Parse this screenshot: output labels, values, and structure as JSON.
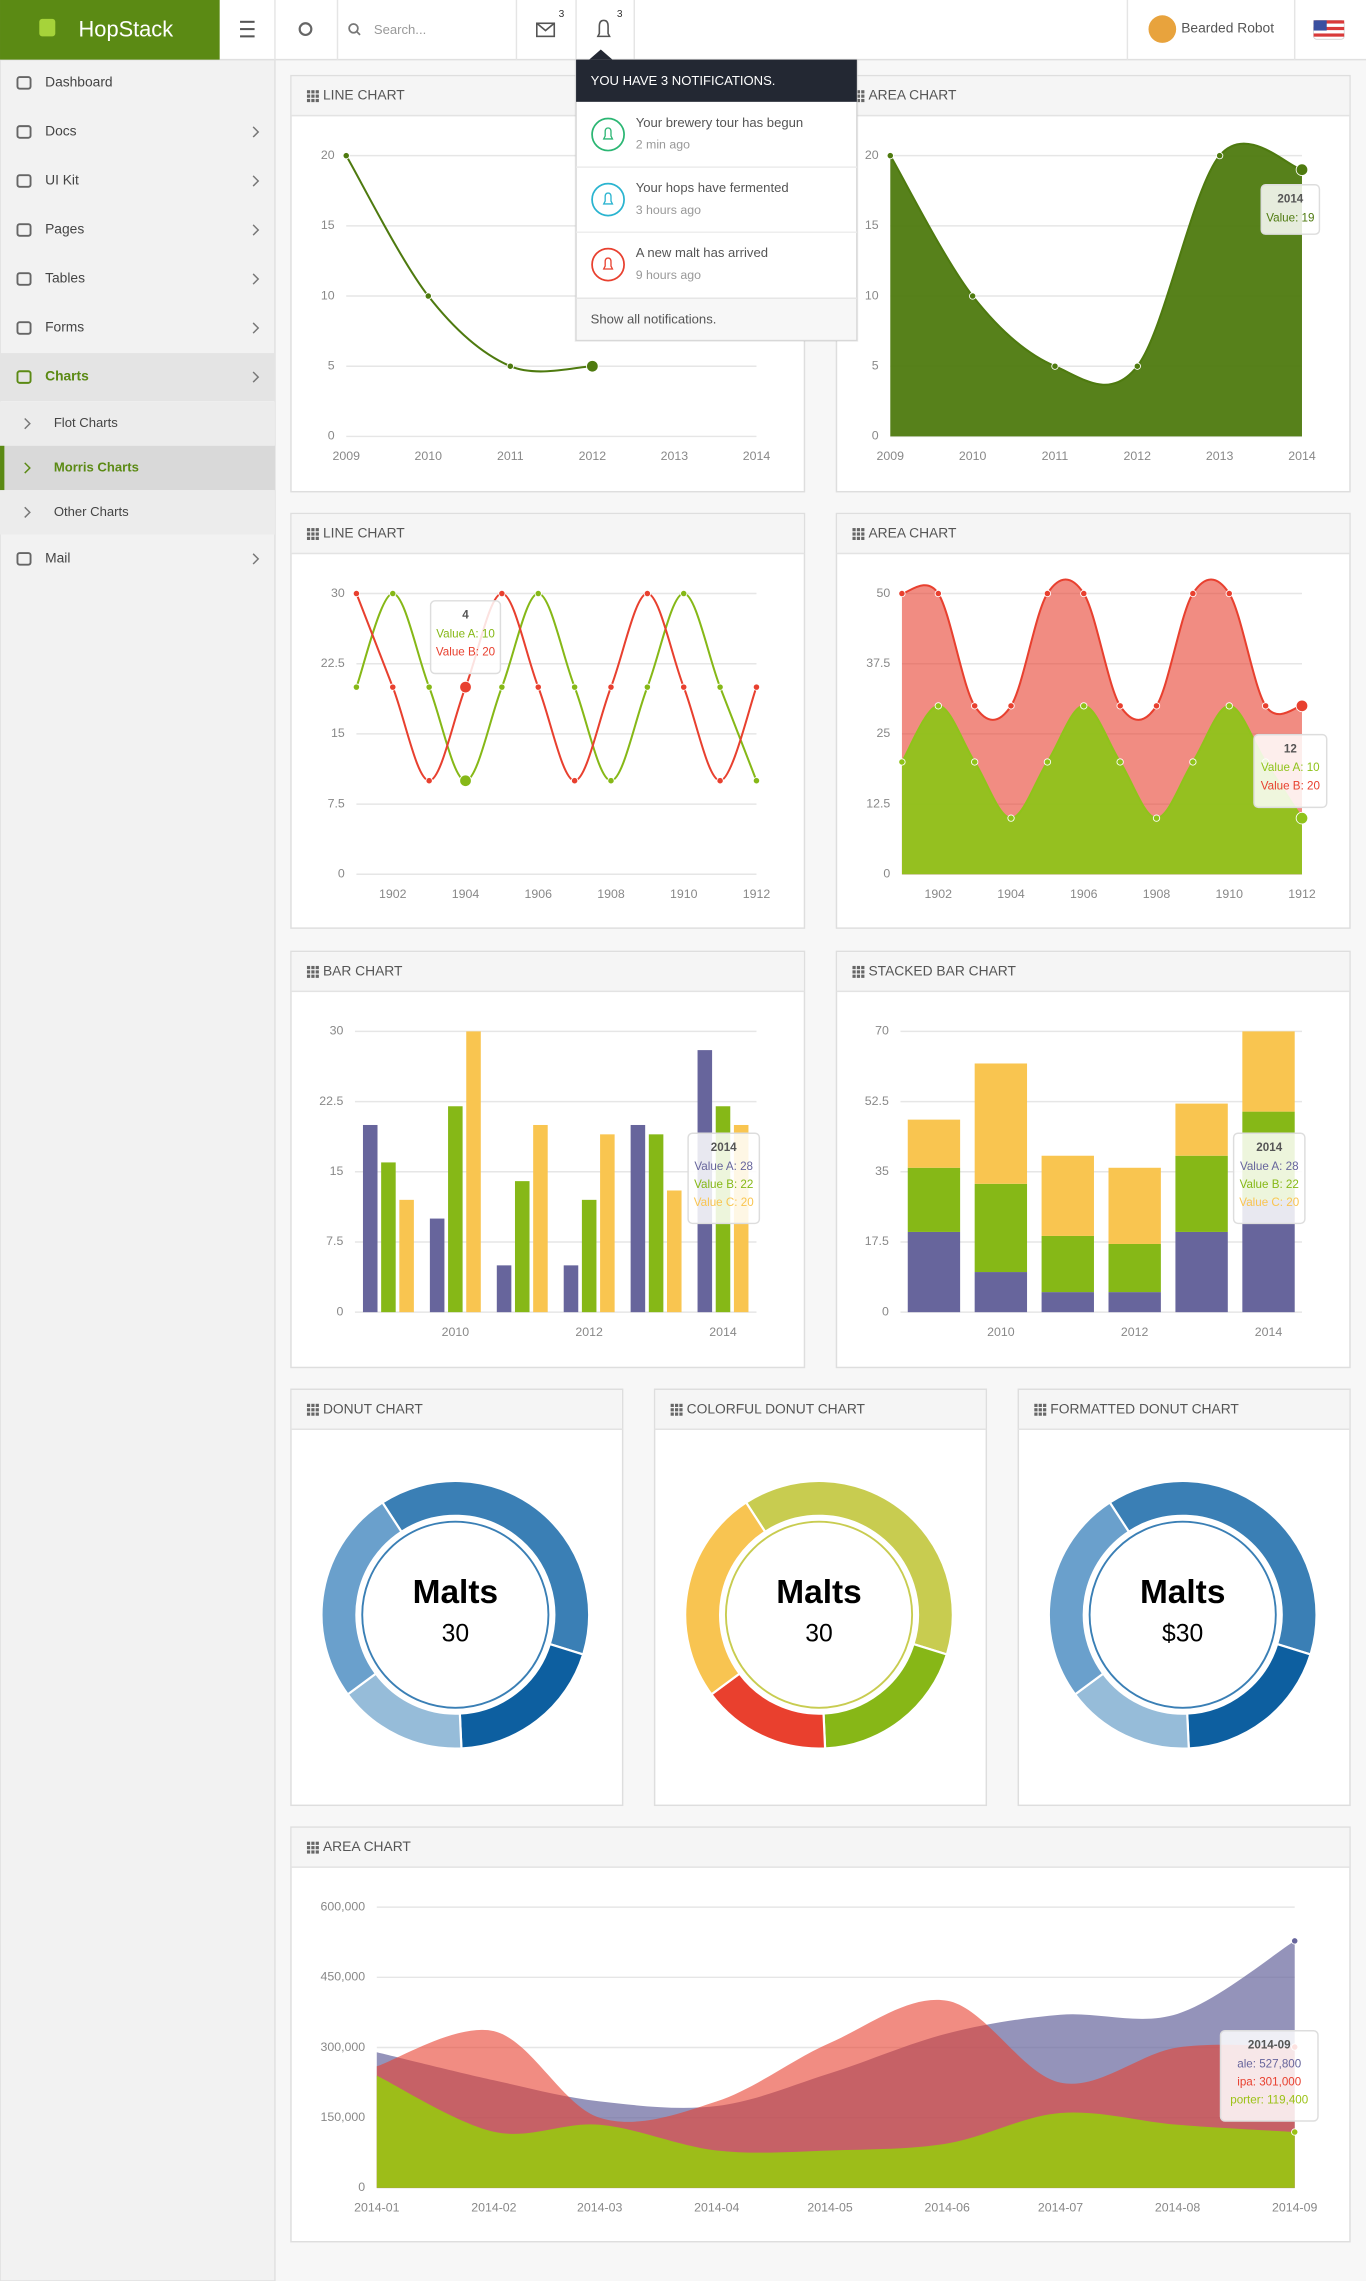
{
  "header": {
    "brand": "HopStack",
    "search_placeholder": "Search...",
    "mail_count": 3,
    "notification_count": 3,
    "user": "Bearded Robot"
  },
  "sidebar": {
    "items": [
      {
        "label": "Dashboard"
      },
      {
        "label": "Docs"
      },
      {
        "label": "UI Kit"
      },
      {
        "label": "Pages"
      },
      {
        "label": "Tables"
      },
      {
        "label": "Forms"
      },
      {
        "label": "Charts",
        "active": true,
        "children": [
          {
            "label": "Flot Charts"
          },
          {
            "label": "Morris Charts",
            "active": true
          },
          {
            "label": "Other Charts"
          }
        ]
      },
      {
        "label": "Mail"
      }
    ]
  },
  "notifications": {
    "title": "YOU HAVE 3 NOTIFICATIONS.",
    "items": [
      {
        "text": "Your brewery tour has begun",
        "time": "2 min ago",
        "color": "#2bb673"
      },
      {
        "text": "Your hops have fermented",
        "time": "3 hours ago",
        "color": "#2ab4d0"
      },
      {
        "text": "A new malt has arrived",
        "time": "9 hours ago",
        "color": "#e8402f"
      }
    ],
    "footer": "Show all notifications."
  },
  "charts": [
    {
      "type": "line",
      "title": "LINE CHART",
      "x": [
        2009,
        2010,
        2011,
        2012
      ],
      "series": [
        {
          "color": "#4e7a0f",
          "values": [
            20,
            10,
            5,
            5
          ]
        }
      ],
      "xlim": [
        2009,
        2014
      ],
      "xticks": [
        2009,
        2010,
        2011,
        2012,
        2013,
        2014
      ],
      "ylim": [
        0,
        20
      ],
      "yticks": [
        0,
        5,
        10,
        15,
        20
      ],
      "grid": true
    },
    {
      "type": "area",
      "title": "AREA CHART",
      "x": [
        2009,
        2010,
        2011,
        2012,
        2013,
        2014
      ],
      "series": [
        {
          "color": "#4e7a0f",
          "fill_opacity": 0.95,
          "values": [
            20,
            10,
            5,
            5,
            20,
            19
          ]
        }
      ],
      "xlim": [
        2009,
        2014
      ],
      "xticks": [
        2009,
        2010,
        2011,
        2012,
        2013,
        2014
      ],
      "ylim": [
        0,
        20
      ],
      "yticks": [
        0,
        5,
        10,
        15,
        20
      ],
      "grid": true,
      "tooltip": {
        "title": "2014",
        "lines": [
          "Value: 19"
        ]
      }
    },
    {
      "type": "line",
      "title": "LINE CHART",
      "x": [
        1901,
        1902,
        1903,
        1904,
        1905,
        1906,
        1907,
        1908,
        1909,
        1910,
        1911,
        1912
      ],
      "series": [
        {
          "color": "#86b817",
          "values": [
            20,
            30,
            20,
            10,
            20,
            30,
            20,
            10,
            20,
            30,
            20,
            10
          ]
        },
        {
          "color": "#e8402f",
          "values": [
            30,
            20,
            10,
            20,
            30,
            20,
            10,
            20,
            30,
            20,
            10,
            20
          ]
        }
      ],
      "xlim": [
        1901,
        1912
      ],
      "xticks": [
        1902,
        1904,
        1906,
        1908,
        1910,
        1912
      ],
      "ylim": [
        0,
        30
      ],
      "yticks": [
        0,
        7.5,
        15,
        22.5,
        30
      ],
      "grid": true,
      "tooltip": {
        "title": "4",
        "lines": [
          "Value A: 10",
          "Value B: 20"
        ]
      }
    },
    {
      "type": "area",
      "title": "AREA CHART",
      "stacked": true,
      "x": [
        1901,
        1902,
        1903,
        1904,
        1905,
        1906,
        1907,
        1908,
        1909,
        1910,
        1911,
        1912
      ],
      "series": [
        {
          "color": "#8fc31a",
          "fill_opacity": 0.95,
          "values": [
            20,
            30,
            20,
            10,
            20,
            30,
            20,
            10,
            20,
            30,
            20,
            10
          ]
        },
        {
          "color": "#e8402f",
          "fill_opacity": 0.6,
          "values": [
            30,
            20,
            10,
            20,
            30,
            20,
            10,
            20,
            30,
            20,
            10,
            20
          ]
        }
      ],
      "xlim": [
        1901,
        1912
      ],
      "xticks": [
        1902,
        1904,
        1906,
        1908,
        1910,
        1912
      ],
      "ylim": [
        0,
        50
      ],
      "yticks": [
        0,
        12.5,
        25,
        37.5,
        50
      ],
      "grid": true,
      "tooltip": {
        "title": "12",
        "lines": [
          "Value A: 10",
          "Value B: 20"
        ]
      }
    },
    {
      "type": "bar",
      "title": "BAR CHART",
      "categories": [
        null,
        2010,
        null,
        2012,
        null,
        2014
      ],
      "series": [
        {
          "color": "#67659c",
          "values": [
            20,
            10,
            5,
            5,
            20,
            28
          ]
        },
        {
          "color": "#86b817",
          "values": [
            16,
            22,
            14,
            12,
            19,
            22
          ]
        },
        {
          "color": "#f9c550",
          "values": [
            12,
            30,
            20,
            19,
            13,
            20
          ]
        }
      ],
      "ylim": [
        0,
        30
      ],
      "yticks": [
        0,
        7.5,
        15,
        22.5,
        30
      ],
      "grid": true,
      "tooltip": {
        "title": "2014",
        "lines": [
          "Value A: 28",
          "Value B: 22",
          "Value C: 20"
        ]
      }
    },
    {
      "type": "bar",
      "title": "STACKED BAR CHART",
      "stacked": true,
      "categories": [
        null,
        2010,
        null,
        2012,
        null,
        2014
      ],
      "series": [
        {
          "color": "#67659c",
          "values": [
            20,
            10,
            5,
            5,
            20,
            28
          ]
        },
        {
          "color": "#86b817",
          "values": [
            16,
            22,
            14,
            12,
            19,
            22
          ]
        },
        {
          "color": "#f9c550",
          "values": [
            12,
            30,
            20,
            19,
            13,
            20
          ]
        }
      ],
      "ylim": [
        0,
        70
      ],
      "yticks": [
        0,
        17.5,
        35,
        52.5,
        70
      ],
      "grid": true,
      "tooltip": {
        "title": "2014",
        "lines": [
          "Value A: 28",
          "Value B: 22",
          "Value C: 20"
        ]
      }
    },
    {
      "type": "donut",
      "title": "DONUT CHART",
      "labels": [
        "Malts",
        null,
        null,
        null
      ],
      "values": [
        30,
        15,
        12,
        20
      ],
      "colors": [
        "#3a7fb5",
        "#0d5fa0",
        "#96bcd9",
        "#6aa0cc"
      ]
    },
    {
      "type": "donut",
      "title": "COLORFUL DONUT CHART",
      "labels": [
        "Malts",
        null,
        null,
        null
      ],
      "values": [
        30,
        15,
        12,
        20
      ],
      "colors": [
        "#c8cc50",
        "#87b717",
        "#e9402e",
        "#f8c451"
      ]
    },
    {
      "type": "donut",
      "title": "FORMATTED DONUT CHART",
      "labels": [
        "Malts",
        null,
        null,
        null
      ],
      "values": [
        30,
        15,
        12,
        20
      ],
      "value_labels": [
        "$30",
        null,
        null,
        null
      ],
      "colors": [
        "#3a7fb5",
        "#0d5fa0",
        "#96bcd9",
        "#6aa0cc"
      ]
    },
    {
      "type": "area",
      "title": "AREA CHART",
      "x": [
        "2014-01",
        "2014-02",
        "2014-03",
        "2014-04",
        "2014-05",
        "2014-06",
        "2014-07",
        "2014-08",
        "2014-09"
      ],
      "series": [
        {
          "color": "#67659c",
          "fill_opacity": 0.7,
          "values": [
            290000,
            230000,
            185000,
            175000,
            245000,
            330000,
            370000,
            372000,
            527800
          ]
        },
        {
          "color": "#e8402f",
          "fill_opacity": 0.6,
          "values": [
            260000,
            335000,
            150000,
            185000,
            310000,
            400000,
            225000,
            300000,
            301000
          ]
        },
        {
          "color": "#9bc215",
          "fill_opacity": 0.95,
          "values": [
            240000,
            120000,
            135000,
            80000,
            80000,
            95000,
            160000,
            135000,
            119400
          ]
        }
      ],
      "ylim": [
        0,
        600000
      ],
      "yticks": [
        0,
        {
          "value": 150000,
          "label": "150,000"
        },
        {
          "value": 300000,
          "label": "300,000"
        },
        {
          "value": 450000,
          "label": "450,000"
        },
        {
          "value": 600000,
          "label": "600,000"
        }
      ],
      "grid": true,
      "tooltip": {
        "title": "2014-09",
        "lines": [
          "ale: 527,800",
          "ipa: 301,000",
          "porter: 119,400"
        ]
      }
    }
  ]
}
